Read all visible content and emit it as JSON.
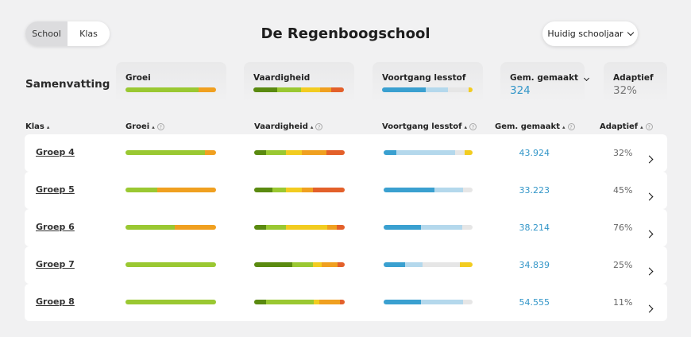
{
  "colors": {
    "accent_blue": "#3396c8",
    "groei_light": "#9ac832",
    "groei_orange": "#f0a020",
    "vaard_dark": "#5a8a10",
    "vaard_light": "#9ac832",
    "vaard_yellow": "#f2cc20",
    "vaard_orange": "#f0a020",
    "vaard_red": "#e3602a",
    "voort_blue": "#3aa0d0",
    "voort_lightblue": "#b4d8ec",
    "voort_grey": "#e6e6e6",
    "voort_yellow": "#f2cc20"
  },
  "toggle": {
    "school": "School",
    "klas": "Klas",
    "selected": "School"
  },
  "title": "De Regenboogschool",
  "year_dropdown": {
    "label": "Huidig schooljaar",
    "icon": "chevron-down-icon"
  },
  "summary": {
    "label": "Samenvatting",
    "cards": [
      {
        "title": "Groei",
        "bar": [
          [
            "groei_light",
            81
          ],
          [
            "groei_orange",
            19
          ]
        ]
      },
      {
        "title": "Vaardigheid",
        "bar": [
          [
            "vaard_dark",
            26
          ],
          [
            "vaard_light",
            27
          ],
          [
            "vaard_yellow",
            21
          ],
          [
            "vaard_orange",
            12
          ],
          [
            "vaard_red",
            14
          ]
        ]
      },
      {
        "title": "Voortgang lesstof",
        "bar": [
          [
            "voort_blue",
            48
          ],
          [
            "voort_lightblue",
            25
          ],
          [
            "voort_grey",
            23
          ],
          [
            "voort_yellow",
            4
          ]
        ]
      },
      {
        "title": "Gem. gemaakt",
        "value": "324"
      },
      {
        "title": "Adaptief",
        "value": "32%"
      }
    ]
  },
  "headers": {
    "klas": "Klas",
    "groei": "Groei",
    "vaardigheid": "Vaardigheid",
    "voortgang": "Voortgang lesstof",
    "gem": "Gem. gemaakt",
    "adaptief": "Adaptief"
  },
  "rows": [
    {
      "name": "Groep 4",
      "gem": "43.924",
      "adaptief": "32%",
      "groei": [
        [
          "groei_light",
          88
        ],
        [
          "groei_orange",
          12
        ]
      ],
      "vaardigheid": [
        [
          "vaard_dark",
          13
        ],
        [
          "vaard_light",
          22
        ],
        [
          "vaard_yellow",
          18
        ],
        [
          "vaard_orange",
          27
        ],
        [
          "vaard_red",
          20
        ]
      ],
      "voortgang": [
        [
          "voort_blue",
          14
        ],
        [
          "voort_lightblue",
          66
        ],
        [
          "voort_grey",
          11
        ],
        [
          "voort_yellow",
          9
        ]
      ]
    },
    {
      "name": "Groep 5",
      "gem": "33.223",
      "adaptief": "45%",
      "groei": [
        [
          "groei_light",
          35
        ],
        [
          "groei_orange",
          65
        ]
      ],
      "vaardigheid": [
        [
          "vaard_dark",
          20
        ],
        [
          "vaard_light",
          15
        ],
        [
          "vaard_yellow",
          18
        ],
        [
          "vaard_orange",
          12
        ],
        [
          "vaard_red",
          35
        ]
      ],
      "voortgang": [
        [
          "voort_blue",
          57
        ],
        [
          "voort_lightblue",
          32
        ],
        [
          "voort_grey",
          11
        ]
      ]
    },
    {
      "name": "Groep 6",
      "gem": "38.214",
      "adaptief": "76%",
      "groei": [
        [
          "groei_light",
          54
        ],
        [
          "groei_orange",
          46
        ]
      ],
      "vaardigheid": [
        [
          "vaard_dark",
          13
        ],
        [
          "vaard_light",
          22
        ],
        [
          "vaard_yellow",
          46
        ],
        [
          "vaard_orange",
          10
        ],
        [
          "vaard_red",
          9
        ]
      ],
      "voortgang": [
        [
          "voort_blue",
          42
        ],
        [
          "voort_lightblue",
          46
        ],
        [
          "voort_grey",
          12
        ]
      ]
    },
    {
      "name": "Groep 7",
      "gem": "34.839",
      "adaptief": "25%",
      "groei": [
        [
          "groei_light",
          100
        ]
      ],
      "vaardigheid": [
        [
          "vaard_dark",
          42
        ],
        [
          "vaard_light",
          23
        ],
        [
          "vaard_yellow",
          10
        ],
        [
          "vaard_orange",
          17
        ],
        [
          "vaard_red",
          8
        ]
      ],
      "voortgang": [
        [
          "voort_blue",
          24
        ],
        [
          "voort_lightblue",
          20
        ],
        [
          "voort_grey",
          42
        ],
        [
          "voort_yellow",
          14
        ]
      ]
    },
    {
      "name": "Groep 8",
      "gem": "54.555",
      "adaptief": "11%",
      "groei": [
        [
          "groei_light",
          100
        ]
      ],
      "vaardigheid": [
        [
          "vaard_dark",
          13
        ],
        [
          "vaard_light",
          53
        ],
        [
          "vaard_yellow",
          6
        ],
        [
          "vaard_orange",
          23
        ],
        [
          "vaard_red",
          5
        ]
      ],
      "voortgang": [
        [
          "voort_blue",
          42
        ],
        [
          "voort_lightblue",
          47
        ],
        [
          "voort_grey",
          11
        ]
      ]
    }
  ]
}
